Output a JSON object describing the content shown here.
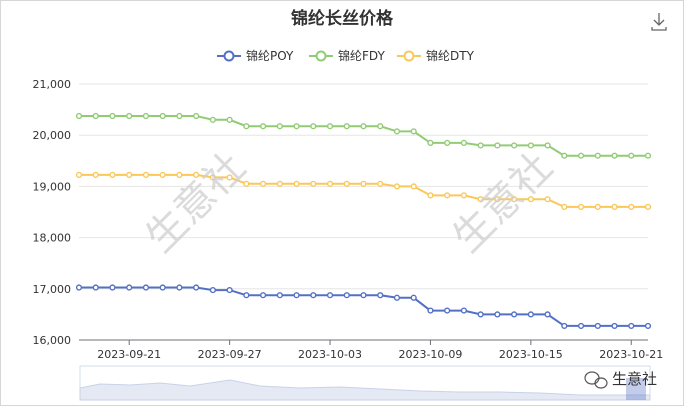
{
  "chart_data": {
    "type": "line",
    "title": "锦纶长丝价格",
    "xlabel": "",
    "ylabel": "",
    "ylim": [
      16000,
      21000
    ],
    "yticks": [
      16000,
      17000,
      18000,
      19000,
      20000,
      21000
    ],
    "ytick_labels": [
      "16,000",
      "17,000",
      "18,000",
      "19,000",
      "20,000",
      "21,000"
    ],
    "x": [
      "2023-09-18",
      "2023-09-19",
      "2023-09-20",
      "2023-09-21",
      "2023-09-22",
      "2023-09-23",
      "2023-09-24",
      "2023-09-25",
      "2023-09-26",
      "2023-09-27",
      "2023-09-28",
      "2023-09-29",
      "2023-09-30",
      "2023-10-01",
      "2023-10-02",
      "2023-10-03",
      "2023-10-04",
      "2023-10-05",
      "2023-10-06",
      "2023-10-07",
      "2023-10-08",
      "2023-10-09",
      "2023-10-10",
      "2023-10-11",
      "2023-10-12",
      "2023-10-13",
      "2023-10-14",
      "2023-10-15",
      "2023-10-16",
      "2023-10-17",
      "2023-10-18",
      "2023-10-19",
      "2023-10-20",
      "2023-10-21",
      "2023-10-22"
    ],
    "xtick_labels": [
      "2023-09-21",
      "2023-09-27",
      "2023-10-03",
      "2023-10-09",
      "2023-10-15",
      "2023-10-21"
    ],
    "legend_position": "top-center",
    "grid": true,
    "series": [
      {
        "name": "锦纶POY",
        "color": "#5470c6",
        "values": [
          17025,
          17025,
          17025,
          17025,
          17025,
          17025,
          17025,
          17025,
          16975,
          16975,
          16875,
          16875,
          16875,
          16875,
          16875,
          16875,
          16875,
          16875,
          16875,
          16825,
          16825,
          16575,
          16575,
          16575,
          16500,
          16500,
          16500,
          16500,
          16500,
          16275,
          16275,
          16275,
          16275,
          16275,
          16275
        ]
      },
      {
        "name": "锦纶FDY",
        "color": "#91cc75",
        "values": [
          20375,
          20375,
          20375,
          20375,
          20375,
          20375,
          20375,
          20375,
          20300,
          20300,
          20175,
          20175,
          20175,
          20175,
          20175,
          20175,
          20175,
          20175,
          20175,
          20075,
          20075,
          19850,
          19850,
          19850,
          19800,
          19800,
          19800,
          19800,
          19800,
          19600,
          19600,
          19600,
          19600,
          19600,
          19600
        ]
      },
      {
        "name": "锦纶DTY",
        "color": "#fac858",
        "values": [
          19225,
          19225,
          19225,
          19225,
          19225,
          19225,
          19225,
          19225,
          19175,
          19175,
          19050,
          19050,
          19050,
          19050,
          19050,
          19050,
          19050,
          19050,
          19050,
          19000,
          19000,
          18825,
          18825,
          18825,
          18750,
          18750,
          18750,
          18750,
          18750,
          18600,
          18600,
          18600,
          18600,
          18600,
          18600
        ]
      }
    ]
  },
  "watermark_text": "生意社",
  "brand": {
    "text": "生意社"
  },
  "icons": {
    "download": "download-icon",
    "brand": "wechat-icon"
  }
}
